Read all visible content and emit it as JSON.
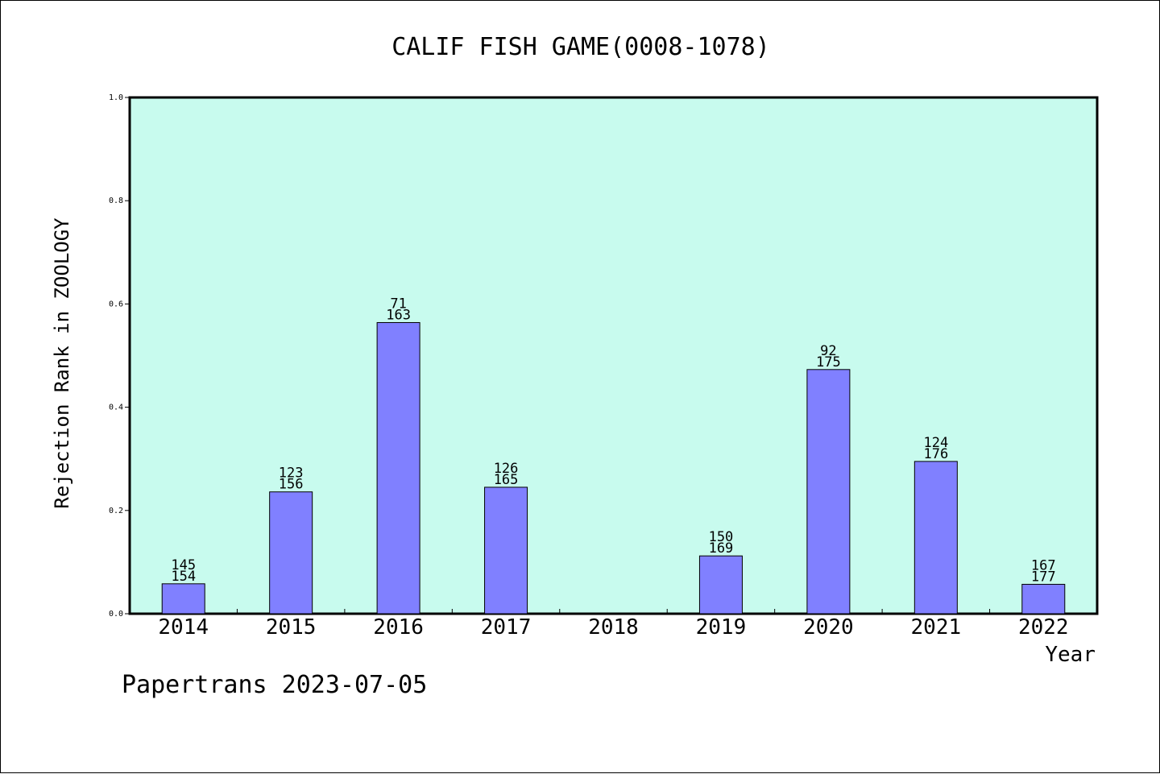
{
  "chart_data": {
    "type": "bar",
    "title": "CALIF FISH GAME(0008-1078)",
    "xlabel": "Year",
    "ylabel": "Rejection Rank in ZOOLOGY",
    "ylim": [
      0,
      1.0
    ],
    "y_ticks": [
      "0.0",
      "0.2",
      "0.4",
      "0.6",
      "0.8",
      "1.0"
    ],
    "categories": [
      "2014",
      "2015",
      "2016",
      "2017",
      "2018",
      "2019",
      "2020",
      "2021",
      "2022"
    ],
    "values": [
      0.058,
      0.236,
      0.564,
      0.245,
      null,
      0.112,
      0.473,
      0.295,
      0.057
    ],
    "labels_top": [
      "145",
      "123",
      "71",
      "126",
      "",
      "150",
      "92",
      "124",
      "167"
    ],
    "labels_bottom": [
      "154",
      "156",
      "163",
      "165",
      "",
      "169",
      "175",
      "176",
      "177"
    ],
    "grid": false,
    "colors": {
      "plot_bg": "#c8fbee",
      "bar_fill": "#8080ff",
      "bar_stroke": "#000000"
    }
  },
  "footer": {
    "note": "Papertrans 2023-07-05"
  }
}
